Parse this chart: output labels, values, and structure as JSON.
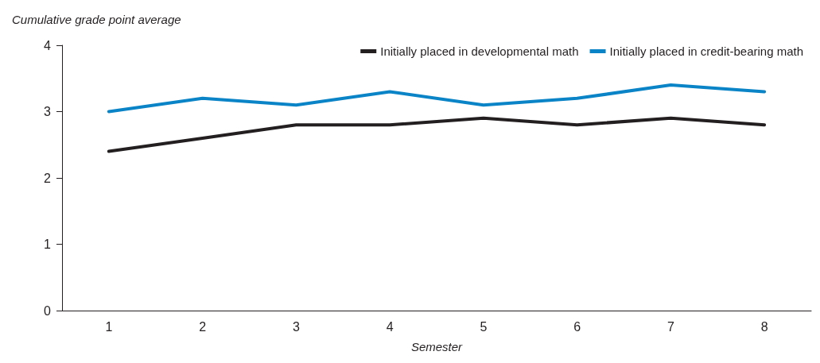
{
  "chart_data": {
    "type": "line",
    "ylabel": "Cumulative grade point average",
    "xlabel": "Semester",
    "categories": [
      "1",
      "2",
      "3",
      "4",
      "5",
      "6",
      "7",
      "8"
    ],
    "series": [
      {
        "name": "Initially placed in developmental math",
        "color": "#231f20",
        "values": [
          2.4,
          2.6,
          2.8,
          2.8,
          2.9,
          2.8,
          2.9,
          2.8
        ]
      },
      {
        "name": "Initially placed in credit-bearing math",
        "color": "#0a84c6",
        "values": [
          3.0,
          3.2,
          3.1,
          3.3,
          3.1,
          3.2,
          3.4,
          3.3
        ]
      }
    ],
    "ylim": [
      0,
      4
    ],
    "yticks": [
      0,
      1,
      2,
      3,
      4
    ],
    "grid": false,
    "legend": "top right",
    "marker": "none",
    "line_style": "solid"
  }
}
